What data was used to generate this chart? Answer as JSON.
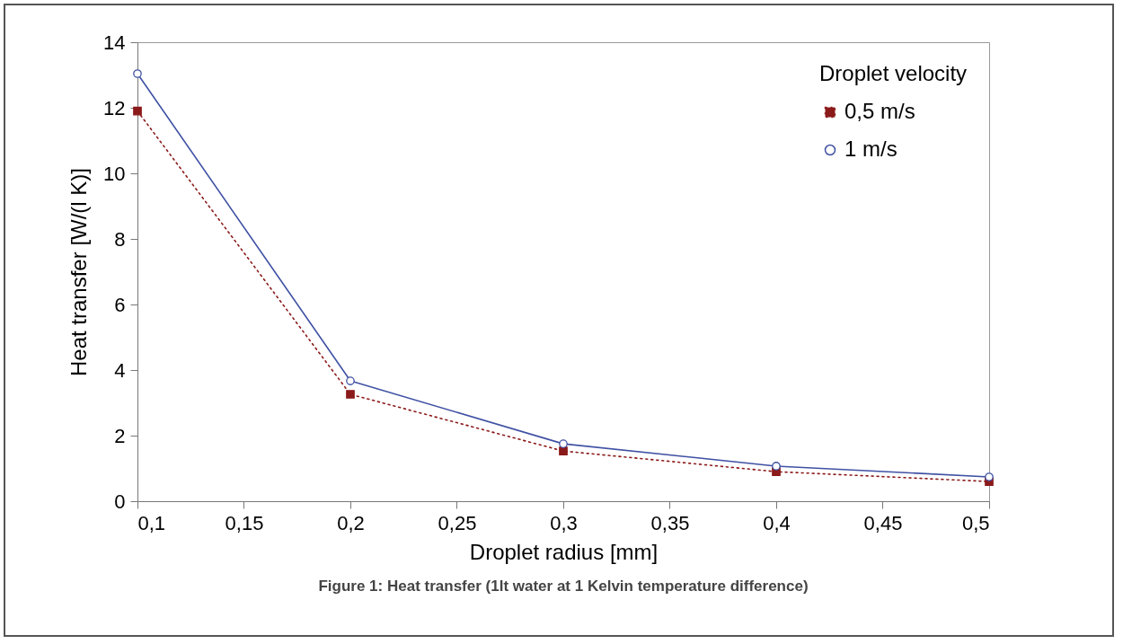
{
  "chart_data": {
    "type": "line",
    "xlabel": "Droplet radius [mm]",
    "ylabel": "Heat transfer [W/(l K)]",
    "legend_title": "Droplet velocity",
    "legend": "top right",
    "grid": false,
    "x": [
      0.1,
      0.2,
      0.3,
      0.4,
      0.5
    ],
    "series": [
      {
        "name": "0,5 m/s",
        "color": "#8b1a1a",
        "marker": "square",
        "line_style": "dotted",
        "values": [
          11.9,
          3.26,
          1.53,
          0.9,
          0.6
        ]
      },
      {
        "name": "1 m/s",
        "color": "#3f51a3",
        "marker": "circle",
        "line_style": "solid",
        "values": [
          13.04,
          3.67,
          1.75,
          1.07,
          0.74
        ]
      }
    ],
    "xlim": [
      0.1,
      0.5
    ],
    "xticks": [
      {
        "value": 0.1,
        "label": "0,1"
      },
      {
        "value": 0.15,
        "label": "0,15"
      },
      {
        "value": 0.2,
        "label": "0,2"
      },
      {
        "value": 0.25,
        "label": "0,25"
      },
      {
        "value": 0.3,
        "label": "0,3"
      },
      {
        "value": 0.35,
        "label": "0,35"
      },
      {
        "value": 0.4,
        "label": "0,4"
      },
      {
        "value": 0.45,
        "label": "0,45"
      },
      {
        "value": 0.5,
        "label": "0,5"
      }
    ],
    "ylim": [
      0,
      14
    ],
    "yticks": [
      0,
      2,
      4,
      6,
      8,
      10,
      12,
      14
    ],
    "annotations": [
      "Figure 1: Heat transfer (1lt water at 1 Kelvin temperature difference)"
    ]
  }
}
